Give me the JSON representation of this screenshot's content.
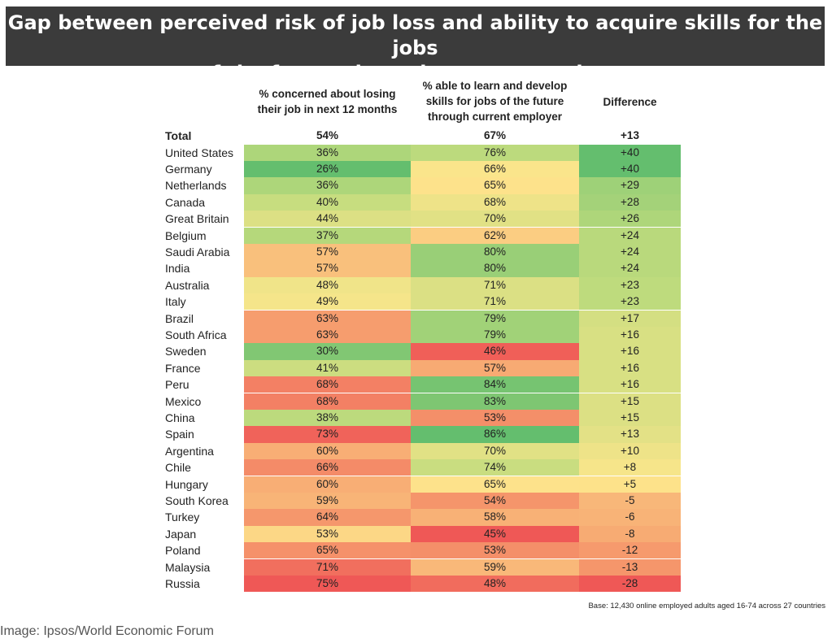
{
  "title_line1": "Gap between perceived risk of job loss and ability to acquire skills for the jobs",
  "title_line2": "of the future through current employer",
  "chart_data": {
    "type": "table",
    "columns": [
      "% concerned about losing their job in next 12 months",
      "% able to learn and develop skills for jobs of the future through current employer",
      "Difference"
    ],
    "column_headers": [
      [
        "% concerned about losing",
        "their job in next 12 months"
      ],
      [
        "% able to learn and develop",
        "skills for jobs of the future",
        "through current employer"
      ],
      [
        "Difference"
      ]
    ],
    "total": {
      "label": "Total",
      "concerned": "54%",
      "able": "67%",
      "difference": "+13"
    },
    "rows": [
      {
        "country": "United States",
        "concerned": "36%",
        "able": "76%",
        "difference": "+40"
      },
      {
        "country": "Germany",
        "concerned": "26%",
        "able": "66%",
        "difference": "+40"
      },
      {
        "country": "Netherlands",
        "concerned": "36%",
        "able": "65%",
        "difference": "+29"
      },
      {
        "country": "Canada",
        "concerned": "40%",
        "able": "68%",
        "difference": "+28"
      },
      {
        "country": "Great Britain",
        "concerned": "44%",
        "able": "70%",
        "difference": "+26"
      },
      {
        "country": "Belgium",
        "concerned": "37%",
        "able": "62%",
        "difference": "+24"
      },
      {
        "country": "Saudi Arabia",
        "concerned": "57%",
        "able": "80%",
        "difference": "+24"
      },
      {
        "country": "India",
        "concerned": "57%",
        "able": "80%",
        "difference": "+24"
      },
      {
        "country": "Australia",
        "concerned": "48%",
        "able": "71%",
        "difference": "+23"
      },
      {
        "country": "Italy",
        "concerned": "49%",
        "able": "71%",
        "difference": "+23"
      },
      {
        "country": "Brazil",
        "concerned": "63%",
        "able": "79%",
        "difference": "+17"
      },
      {
        "country": "South Africa",
        "concerned": "63%",
        "able": "79%",
        "difference": "+16"
      },
      {
        "country": "Sweden",
        "concerned": "30%",
        "able": "46%",
        "difference": "+16"
      },
      {
        "country": "France",
        "concerned": "41%",
        "able": "57%",
        "difference": "+16"
      },
      {
        "country": "Peru",
        "concerned": "68%",
        "able": "84%",
        "difference": "+16"
      },
      {
        "country": "Mexico",
        "concerned": "68%",
        "able": "83%",
        "difference": "+15"
      },
      {
        "country": "China",
        "concerned": "38%",
        "able": "53%",
        "difference": "+15"
      },
      {
        "country": "Spain",
        "concerned": "73%",
        "able": "86%",
        "difference": "+13"
      },
      {
        "country": "Argentina",
        "concerned": "60%",
        "able": "70%",
        "difference": "+10"
      },
      {
        "country": "Chile",
        "concerned": "66%",
        "able": "74%",
        "difference": "+8"
      },
      {
        "country": "Hungary",
        "concerned": "60%",
        "able": "65%",
        "difference": "+5"
      },
      {
        "country": "South Korea",
        "concerned": "59%",
        "able": "54%",
        "difference": "-5"
      },
      {
        "country": "Turkey",
        "concerned": "64%",
        "able": "58%",
        "difference": "-6"
      },
      {
        "country": "Japan",
        "concerned": "53%",
        "able": "45%",
        "difference": "-8"
      },
      {
        "country": "Poland",
        "concerned": "65%",
        "able": "53%",
        "difference": "-12"
      },
      {
        "country": "Malaysia",
        "concerned": "71%",
        "able": "59%",
        "difference": "-13"
      },
      {
        "country": "Russia",
        "concerned": "75%",
        "able": "48%",
        "difference": "-28"
      }
    ]
  },
  "base_note": "Base: 12,430 online employed adults aged 16-74 across 27 countries",
  "credit": "Image: Ipsos/World Economic Forum"
}
